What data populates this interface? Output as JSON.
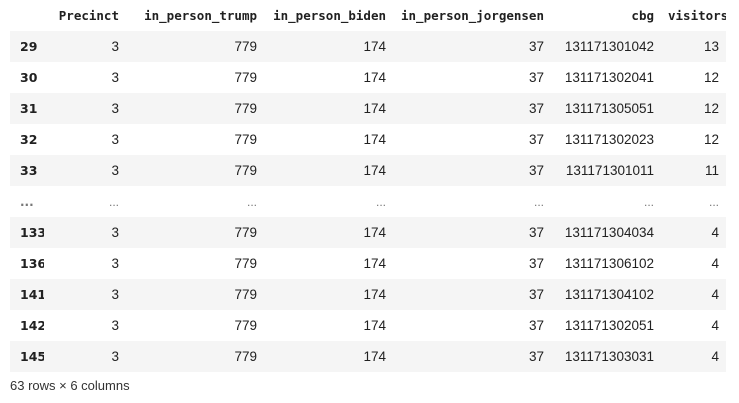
{
  "table": {
    "columns": [
      "",
      "Precinct",
      "in_person_trump",
      "in_person_biden",
      "in_person_jorgensen",
      "cbg",
      "visitors"
    ],
    "rows": [
      [
        "29",
        "3",
        "779",
        "174",
        "37",
        "131171301042",
        "13"
      ],
      [
        "30",
        "3",
        "779",
        "174",
        "37",
        "131171302041",
        "12"
      ],
      [
        "31",
        "3",
        "779",
        "174",
        "37",
        "131171305051",
        "12"
      ],
      [
        "32",
        "3",
        "779",
        "174",
        "37",
        "131171302023",
        "12"
      ],
      [
        "33",
        "3",
        "779",
        "174",
        "37",
        "131171301011",
        "11"
      ],
      [
        "...",
        "...",
        "...",
        "...",
        "...",
        "...",
        "..."
      ],
      [
        "133",
        "3",
        "779",
        "174",
        "37",
        "131171304034",
        "4"
      ],
      [
        "136",
        "3",
        "779",
        "174",
        "37",
        "131171306102",
        "4"
      ],
      [
        "141",
        "3",
        "779",
        "174",
        "37",
        "131171304102",
        "4"
      ],
      [
        "142",
        "3",
        "779",
        "174",
        "37",
        "131171302051",
        "4"
      ],
      [
        "145",
        "3",
        "779",
        "174",
        "37",
        "131171303031",
        "4"
      ]
    ]
  },
  "footer": {
    "shape_text": "63 rows × 6 columns"
  }
}
